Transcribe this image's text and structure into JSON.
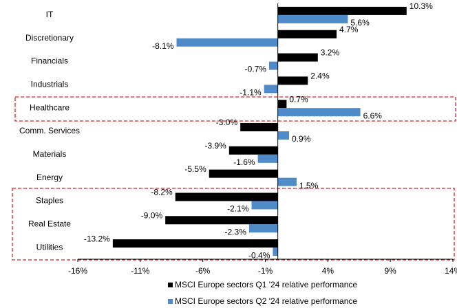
{
  "chart_data": {
    "type": "bar",
    "orientation": "horizontal",
    "categories": [
      "IT",
      "Discretionary",
      "Financials",
      "Industrials",
      "Healthcare",
      "Comm. Services",
      "Materials",
      "Energy",
      "Staples",
      "Real Estate",
      "Utilities"
    ],
    "series": [
      {
        "name": "MSCI Europe sectors Q1 '24 relative performance",
        "color": "#000000",
        "values": [
          10.3,
          4.7,
          3.2,
          2.4,
          0.7,
          -3.0,
          -3.9,
          -5.5,
          -8.2,
          -9.0,
          -13.2
        ],
        "value_labels": [
          "10.3%",
          "4.7%",
          "3.2%",
          "2.4%",
          "0.7%",
          "-3.0%",
          "-3.9%",
          "-5.5%",
          "-8.2%",
          "-9.0%",
          "-13.2%"
        ]
      },
      {
        "name": "MSCI Europe sectors Q2 '24 relative performance",
        "color": "#4f8ac9",
        "values": [
          5.6,
          -8.1,
          -0.7,
          -1.1,
          6.6,
          0.9,
          -1.6,
          1.5,
          -2.1,
          -2.3,
          -0.4
        ],
        "value_labels": [
          "5.6%",
          "-8.1%",
          "-0.7%",
          "-1.1%",
          "6.6%",
          "0.9%",
          "-1.6%",
          "1.5%",
          "-2.1%",
          "-2.3%",
          "-0.4%"
        ]
      }
    ],
    "xlim": [
      -16,
      14
    ],
    "xticks": [
      {
        "value": -16,
        "label": "-16%"
      },
      {
        "value": -11,
        "label": "-11%"
      },
      {
        "value": -6,
        "label": "-6%"
      },
      {
        "value": -1,
        "label": "-1%"
      },
      {
        "value": 4,
        "label": "4%"
      },
      {
        "value": 9,
        "label": "9%"
      },
      {
        "value": 14,
        "label": "14%"
      }
    ],
    "legend": "bottom"
  }
}
